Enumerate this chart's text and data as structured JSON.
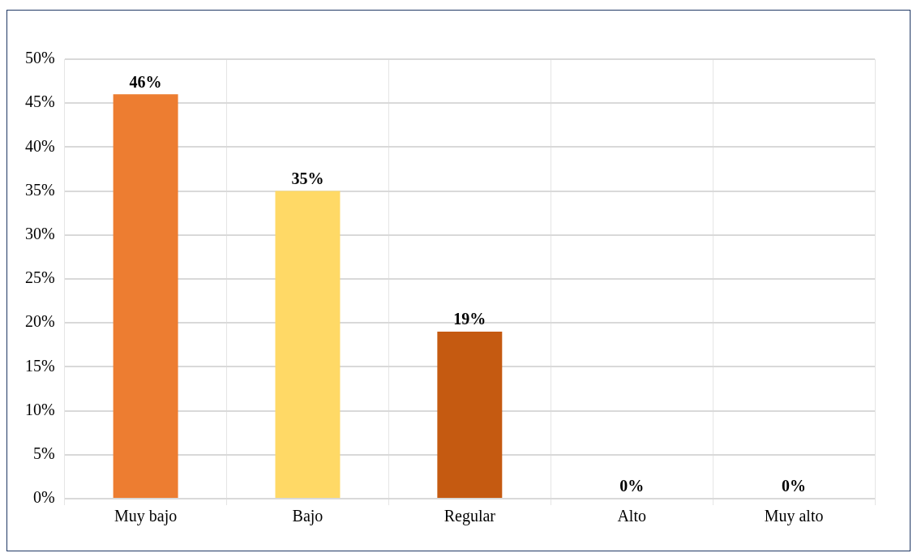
{
  "chart_data": {
    "type": "bar",
    "categories": [
      "Muy bajo",
      "Bajo",
      "Regular",
      "Alto",
      "Muy alto"
    ],
    "values": [
      46,
      35,
      19,
      0,
      0
    ],
    "colors": [
      "#ed7d31",
      "#ffd966",
      "#c55a11",
      "#8497b0",
      "#84a46c"
    ],
    "value_labels": [
      "46%",
      "35%",
      "19%",
      "0%",
      "0%"
    ],
    "ylim": [
      0,
      50
    ],
    "yticks": [
      {
        "value": 0,
        "label": "0%"
      },
      {
        "value": 5,
        "label": "5%"
      },
      {
        "value": 10,
        "label": "10%"
      },
      {
        "value": 15,
        "label": "15%"
      },
      {
        "value": 20,
        "label": "20%"
      },
      {
        "value": 25,
        "label": "25%"
      },
      {
        "value": 30,
        "label": "30%"
      },
      {
        "value": 35,
        "label": "35%"
      },
      {
        "value": 40,
        "label": "40%"
      },
      {
        "value": 45,
        "label": "45%"
      },
      {
        "value": 50,
        "label": "50%"
      }
    ],
    "grid": true,
    "legend": false
  }
}
